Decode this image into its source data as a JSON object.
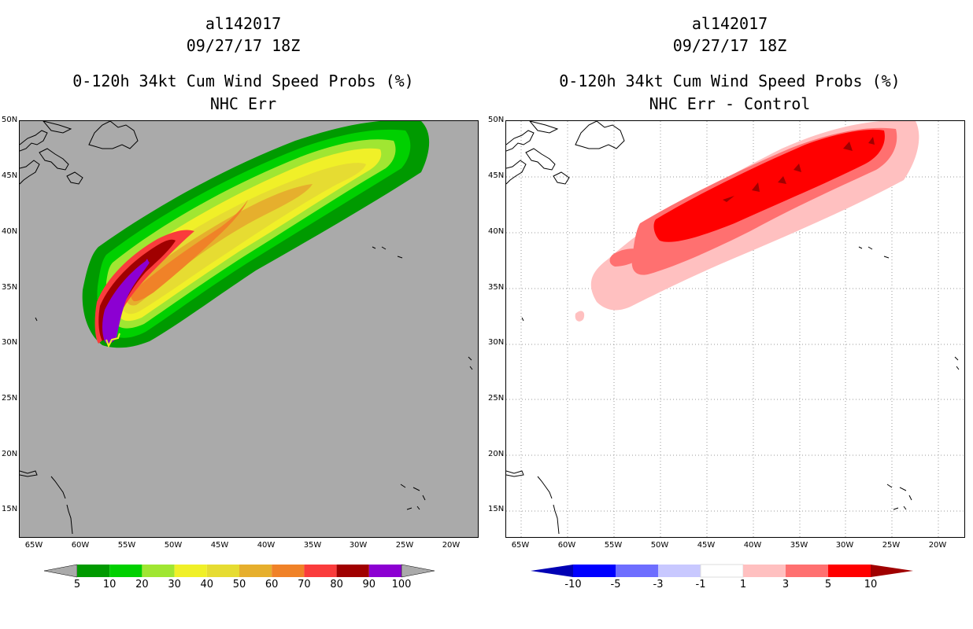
{
  "left_panel": {
    "storm_id": "al142017",
    "datetime": "09/27/17 18Z",
    "title": "0-120h 34kt Cum Wind Speed Probs (%)",
    "subtitle": "NHC Err",
    "colorbar": {
      "labels": [
        "5",
        "10",
        "20",
        "30",
        "40",
        "50",
        "60",
        "70",
        "80",
        "90",
        "100"
      ],
      "colors": [
        "#009a00",
        "#00d000",
        "#a0e632",
        "#f0f028",
        "#e6dc32",
        "#e6af2d",
        "#f08228",
        "#fa3c3c",
        "#a00000",
        "#8c00d2"
      ]
    }
  },
  "right_panel": {
    "storm_id": "al142017",
    "datetime": "09/27/17 18Z",
    "title": "0-120h 34kt Cum Wind Speed Probs (%)",
    "subtitle": "NHC Err - Control",
    "colorbar": {
      "labels": [
        "-10",
        "-5",
        "-3",
        "-1",
        "1",
        "3",
        "5",
        "10"
      ],
      "colors": [
        "#0000b4",
        "#0000ff",
        "#6e6eff",
        "#c8c8ff",
        "#ffffff",
        "#ffc0c0",
        "#ff7070",
        "#ff0000",
        "#a00000"
      ]
    }
  },
  "axes": {
    "lat_labels": [
      "50N",
      "45N",
      "40N",
      "35N",
      "30N",
      "25N",
      "20N",
      "15N"
    ],
    "lon_labels": [
      "65W",
      "60W",
      "55W",
      "50W",
      "45W",
      "40W",
      "35W",
      "30W",
      "25W",
      "20W"
    ]
  }
}
